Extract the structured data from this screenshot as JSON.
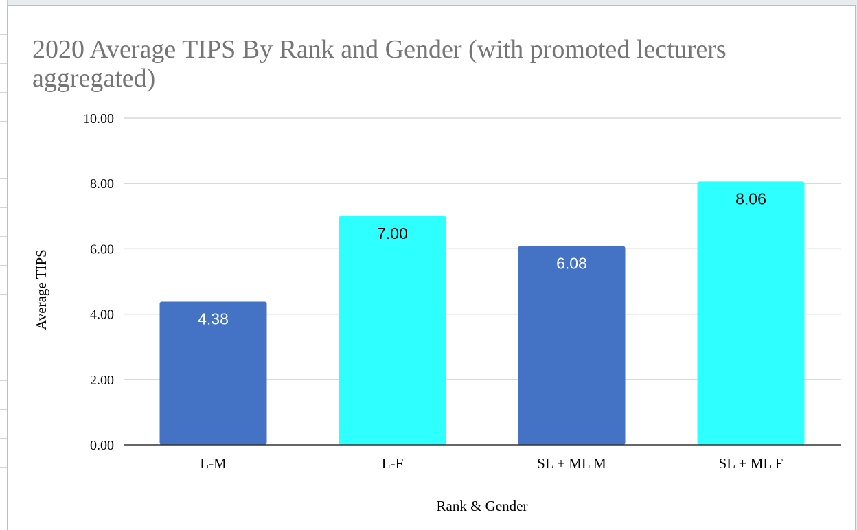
{
  "chart_data": {
    "type": "bar",
    "title": "2020 Average TIPS By Rank and Gender (with promoted lecturers aggregated)",
    "xlabel": "Rank & Gender",
    "ylabel": "Average TIPS",
    "ylim": [
      0,
      10
    ],
    "yticks": [
      "0.00",
      "2.00",
      "4.00",
      "6.00",
      "8.00",
      "10.00"
    ],
    "grid": true,
    "legend": "none",
    "categories": [
      "L-M",
      "L-F",
      "SL + ML M",
      "SL + ML F"
    ],
    "values": [
      4.38,
      7.0,
      6.08,
      8.06
    ],
    "data_labels": [
      "4.38",
      "7.00",
      "6.08",
      "8.06"
    ],
    "bar_colors": [
      "#4472c4",
      "#2effff",
      "#4472c4",
      "#2effff"
    ],
    "label_colors": [
      "#ffffff",
      "#000000",
      "#ffffff",
      "#000000"
    ]
  },
  "colors": {
    "title": "#757575",
    "grid": "#d9d9d9",
    "axis": "#333333"
  }
}
